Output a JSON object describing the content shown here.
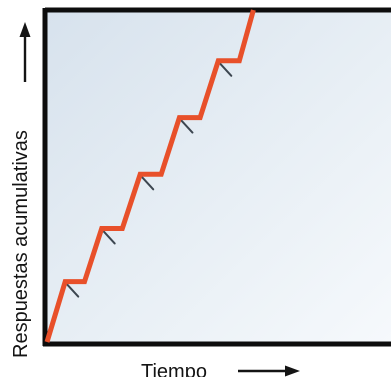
{
  "chart_data": {
    "type": "line",
    "title": "",
    "xlabel": "Tiempo",
    "ylabel": "Respuestas acumulativas",
    "xlim": [
      0,
      100
    ],
    "ylim": [
      0,
      100
    ],
    "grid": false,
    "series": [
      {
        "values": [
          {
            "x": 0,
            "y": 0
          },
          {
            "x": 5.3,
            "y": 18.2
          },
          {
            "x": 10.9,
            "y": 18.2
          },
          {
            "x": 15.9,
            "y": 34.2
          },
          {
            "x": 21.9,
            "y": 34.2
          },
          {
            "x": 27.1,
            "y": 50.5
          },
          {
            "x": 33.2,
            "y": 50.5
          },
          {
            "x": 38.5,
            "y": 67.6
          },
          {
            "x": 44.5,
            "y": 67.6
          },
          {
            "x": 49.8,
            "y": 84.7
          },
          {
            "x": 55.9,
            "y": 84.7
          },
          {
            "x": 60.0,
            "y": 100
          }
        ]
      }
    ],
    "reinforcement_marks": [
      {
        "x": 5.3,
        "y": 18.2
      },
      {
        "x": 15.9,
        "y": 34.2
      },
      {
        "x": 27.1,
        "y": 50.5
      },
      {
        "x": 38.5,
        "y": 67.6
      },
      {
        "x": 49.8,
        "y": 84.7
      }
    ]
  },
  "colors": {
    "background": "#e7eef5",
    "frame": "#0d0d0d",
    "line": "#e8502a",
    "mark": "#3c4650",
    "label": "#141414"
  }
}
